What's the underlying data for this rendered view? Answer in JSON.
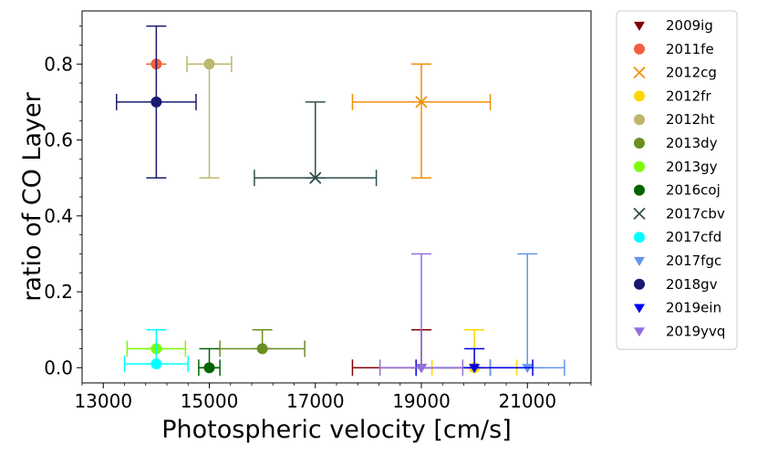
{
  "chart_data": {
    "type": "scatter",
    "title": "",
    "xlabel": "Photospheric velocity [cm/s]",
    "ylabel": "ratio of CO Layer",
    "xlim": [
      12600,
      22200
    ],
    "ylim": [
      -0.04,
      0.94
    ],
    "xticks": [
      13000,
      15000,
      17000,
      19000,
      21000
    ],
    "xtick_labels": [
      "13000",
      "15000",
      "17000",
      "19000",
      "21000"
    ],
    "yticks": [
      0.0,
      0.2,
      0.4,
      0.6,
      0.8
    ],
    "ytick_labels": [
      "0.0",
      "0.2",
      "0.4",
      "0.6",
      "0.8"
    ],
    "grid": false,
    "legend_position": "outside-right",
    "series": [
      {
        "name": "2009ig",
        "color": "#800000",
        "marker": "triangle-down",
        "x": 19000,
        "y": 0.0,
        "xerr": 1300,
        "yerr_low": 0.0,
        "yerr_high": 0.1
      },
      {
        "name": "2011fe",
        "color": "#f06040",
        "marker": "circle",
        "x": 14000,
        "y": 0.8,
        "xerr": 0,
        "yerr_low": 0.0,
        "yerr_high": 0.0
      },
      {
        "name": "2012cg",
        "color": "#f0900a",
        "marker": "x",
        "x": 19000,
        "y": 0.7,
        "xerr": 1300,
        "yerr_low": 0.2,
        "yerr_high": 0.1
      },
      {
        "name": "2012fr",
        "color": "#ffd700",
        "marker": "circle",
        "x": 20000,
        "y": 0.0,
        "xerr": 800,
        "yerr_low": 0.0,
        "yerr_high": 0.1
      },
      {
        "name": "2012ht",
        "color": "#bdb76b",
        "marker": "circle",
        "x": 15000,
        "y": 0.8,
        "xerr": 420,
        "yerr_low": 0.3,
        "yerr_high": 0.0
      },
      {
        "name": "2013dy",
        "color": "#6b8e23",
        "marker": "circle",
        "x": 16000,
        "y": 0.05,
        "xerr": 800,
        "yerr_low": 0.0,
        "yerr_high": 0.05
      },
      {
        "name": "2013gy",
        "color": "#7cfc00",
        "marker": "circle",
        "x": 14000,
        "y": 0.05,
        "xerr": 550,
        "yerr_low": 0.0,
        "yerr_high": 0.0
      },
      {
        "name": "2016coj",
        "color": "#006400",
        "marker": "circle",
        "x": 15000,
        "y": 0.0,
        "xerr": 200,
        "yerr_low": 0.0,
        "yerr_high": 0.05
      },
      {
        "name": "2017cbv",
        "color": "#2f4f4f",
        "marker": "x",
        "x": 17000,
        "y": 0.5,
        "xerr": 1150,
        "yerr_low": 0.0,
        "yerr_high": 0.2
      },
      {
        "name": "2017cfd",
        "color": "#00ffff",
        "marker": "circle",
        "x": 14000,
        "y": 0.01,
        "xerr": 600,
        "yerr_low": 0.0,
        "yerr_high": 0.09
      },
      {
        "name": "2017fgc",
        "color": "#6495ed",
        "marker": "triangle-down",
        "x": 21000,
        "y": 0.0,
        "xerr": 700,
        "yerr_low": 0.0,
        "yerr_high": 0.3
      },
      {
        "name": "2018gv",
        "color": "#191970",
        "marker": "circle",
        "x": 14000,
        "y": 0.7,
        "xerr": 750,
        "yerr_low": 0.2,
        "yerr_high": 0.2
      },
      {
        "name": "2019ein",
        "color": "#0000ee",
        "marker": "triangle-down",
        "x": 20000,
        "y": 0.0,
        "xerr": 1100,
        "yerr_low": 0.0,
        "yerr_high": 0.05
      },
      {
        "name": "2019yvq",
        "color": "#9370db",
        "marker": "triangle-down",
        "x": 19000,
        "y": 0.0,
        "xerr": 780,
        "yerr_low": 0.0,
        "yerr_high": 0.3
      }
    ]
  }
}
